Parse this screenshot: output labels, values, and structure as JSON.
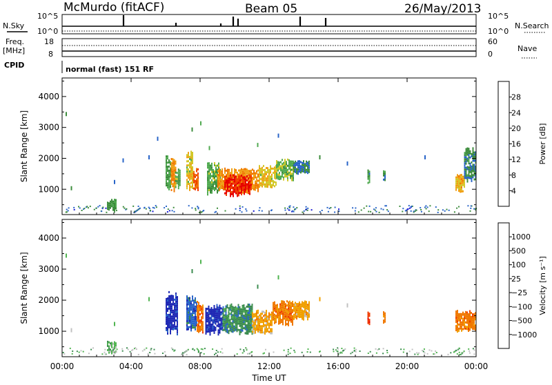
{
  "header": {
    "station": "McMurdo (fitACF)",
    "beam": "Beam 05",
    "date": "26/May/2013"
  },
  "strips": {
    "nsky_label": "N.Sky",
    "nsearch_label": "N.Search",
    "noise_ticks_left": [
      "10^5",
      "10^0"
    ],
    "noise_ticks_right": [
      "10^5",
      "10^0"
    ],
    "freq_label": "Freq.",
    "freq_unit": "[MHz]",
    "freq_ticks": [
      "18",
      "8"
    ],
    "nave_label": "Nave",
    "nave_ticks": [
      "60",
      "0"
    ],
    "cpid_label": "CPID",
    "cpid_text": "normal (fast) 151 RF"
  },
  "colors": {
    "power_scale": [
      "#1414d2",
      "#2864c8",
      "#3c8c3c",
      "#50aa50",
      "#d2c828",
      "#f0a014",
      "#f07800",
      "#f03c00",
      "#e60000"
    ],
    "velocity_scale": [
      "#1e28b4",
      "#2864c8",
      "#3c8c50",
      "#50b450",
      "#c0c0c0",
      "#f0a000",
      "#f07800",
      "#f03c00",
      "#e60000"
    ]
  },
  "chart_data": [
    {
      "type": "heatmap",
      "name": "power",
      "xlabel": "",
      "ylabel": "Slant Range [km]",
      "x_ticks": [
        "00:00",
        "04:00",
        "08:00",
        "12:00",
        "16:00",
        "20:00",
        "00:00"
      ],
      "xlim": [
        0,
        24
      ],
      "y_ticks": [
        1000,
        2000,
        3000,
        4000
      ],
      "ylim": [
        180,
        4600
      ],
      "colorbar": {
        "label": "Power [dB]",
        "ticks": [
          4,
          8,
          12,
          16,
          20,
          24,
          28
        ],
        "range": [
          0,
          32
        ]
      },
      "regions": [
        {
          "t0": 2.6,
          "t1": 3.1,
          "r0": 300,
          "r1": 700,
          "v": 10
        },
        {
          "t0": 6.0,
          "t1": 6.3,
          "r0": 950,
          "r1": 2100,
          "v": 11
        },
        {
          "t0": 6.3,
          "t1": 6.55,
          "r0": 900,
          "r1": 2200,
          "v": 22
        },
        {
          "t0": 6.55,
          "t1": 6.8,
          "r0": 1000,
          "r1": 1700,
          "v": 12
        },
        {
          "t0": 7.2,
          "t1": 7.6,
          "r0": 1000,
          "r1": 2300,
          "v": 17
        },
        {
          "t0": 7.6,
          "t1": 7.9,
          "r0": 950,
          "r1": 1700,
          "v": 25
        },
        {
          "t0": 8.4,
          "t1": 9.2,
          "r0": 800,
          "r1": 1900,
          "v": 12
        },
        {
          "t0": 9.0,
          "t1": 11.4,
          "r0": 900,
          "r1": 1700,
          "v": 21
        },
        {
          "t0": 9.4,
          "t1": 11.0,
          "r0": 800,
          "r1": 1500,
          "v": 29
        },
        {
          "t0": 11.4,
          "t1": 12.4,
          "r0": 1000,
          "r1": 1800,
          "v": 17
        },
        {
          "t0": 12.4,
          "t1": 13.4,
          "r0": 1300,
          "r1": 2000,
          "v": 13
        },
        {
          "t0": 13.4,
          "t1": 14.3,
          "r0": 1500,
          "r1": 1950,
          "v": 7
        },
        {
          "t0": 17.7,
          "t1": 17.85,
          "r0": 1200,
          "r1": 1650,
          "v": 9
        },
        {
          "t0": 18.6,
          "t1": 18.75,
          "r0": 1250,
          "r1": 1650,
          "v": 9
        },
        {
          "t0": 22.8,
          "t1": 23.3,
          "r0": 900,
          "r1": 1500,
          "v": 19
        },
        {
          "t0": 23.3,
          "t1": 24.0,
          "r0": 1200,
          "r1": 2400,
          "v": 8
        }
      ],
      "scatter": [
        {
          "t": 0.2,
          "r": 3500,
          "v": 8
        },
        {
          "t": 0.5,
          "r": 1100,
          "v": 10
        },
        {
          "t": 3.0,
          "r": 1300,
          "v": 6
        },
        {
          "t": 3.5,
          "r": 2000,
          "v": 6
        },
        {
          "t": 5.0,
          "r": 2100,
          "v": 7
        },
        {
          "t": 5.5,
          "r": 2700,
          "v": 6
        },
        {
          "t": 7.5,
          "r": 3000,
          "v": 10
        },
        {
          "t": 8.0,
          "r": 3200,
          "v": 12
        },
        {
          "t": 8.5,
          "r": 2400,
          "v": 11
        },
        {
          "t": 11.3,
          "r": 2500,
          "v": 12
        },
        {
          "t": 12.5,
          "r": 2800,
          "v": 6
        },
        {
          "t": 14.9,
          "r": 2100,
          "v": 8
        },
        {
          "t": 16.5,
          "r": 1900,
          "v": 6
        },
        {
          "t": 21.0,
          "r": 2100,
          "v": 7
        }
      ]
    },
    {
      "type": "heatmap",
      "name": "velocity",
      "xlabel": "Time UT",
      "ylabel": "Slant Range [km]",
      "x_ticks": [
        "00:00",
        "04:00",
        "08:00",
        "12:00",
        "16:00",
        "20:00",
        "00:00"
      ],
      "xlim": [
        0,
        24
      ],
      "y_ticks": [
        1000,
        2000,
        3000,
        4000
      ],
      "ylim": [
        180,
        4600
      ],
      "colorbar": {
        "label": "Velocity [m s⁻¹]",
        "ticks": [
          "1000",
          "500",
          "100",
          "25",
          "−25",
          "−100",
          "−500",
          "−1000"
        ]
      },
      "regions": [
        {
          "t0": 2.6,
          "t1": 3.1,
          "r0": 300,
          "r1": 700,
          "v": 3
        },
        {
          "t0": 6.0,
          "t1": 6.7,
          "r0": 900,
          "r1": 2300,
          "v": 0
        },
        {
          "t0": 7.2,
          "t1": 7.8,
          "r0": 1000,
          "r1": 2200,
          "v": 1
        },
        {
          "t0": 7.8,
          "t1": 8.2,
          "r0": 900,
          "r1": 2000,
          "v": 6
        },
        {
          "t0": 8.3,
          "t1": 9.3,
          "r0": 900,
          "r1": 1900,
          "v": 0
        },
        {
          "t0": 9.3,
          "t1": 11.0,
          "r0": 900,
          "r1": 1900,
          "v": 2
        },
        {
          "t0": 11.0,
          "t1": 12.2,
          "r0": 900,
          "r1": 1700,
          "v": 5
        },
        {
          "t0": 12.2,
          "t1": 13.4,
          "r0": 1200,
          "r1": 2000,
          "v": 6
        },
        {
          "t0": 13.4,
          "t1": 14.3,
          "r0": 1400,
          "r1": 2000,
          "v": 5
        },
        {
          "t0": 17.7,
          "t1": 17.85,
          "r0": 1200,
          "r1": 1650,
          "v": 7
        },
        {
          "t0": 18.6,
          "t1": 18.75,
          "r0": 1250,
          "r1": 1650,
          "v": 6
        },
        {
          "t0": 22.8,
          "t1": 24.0,
          "r0": 1000,
          "r1": 1700,
          "v": 6
        }
      ],
      "scatter": [
        {
          "t": 0.2,
          "r": 3500,
          "v": 3
        },
        {
          "t": 0.5,
          "r": 1100,
          "v": 4
        },
        {
          "t": 3.0,
          "r": 1300,
          "v": 3
        },
        {
          "t": 5.0,
          "r": 2100,
          "v": 3
        },
        {
          "t": 7.5,
          "r": 3000,
          "v": 2
        },
        {
          "t": 8.0,
          "r": 3300,
          "v": 3
        },
        {
          "t": 11.3,
          "r": 2500,
          "v": 2
        },
        {
          "t": 12.5,
          "r": 2800,
          "v": 3
        },
        {
          "t": 14.9,
          "r": 2100,
          "v": 5
        },
        {
          "t": 16.5,
          "r": 1900,
          "v": 4
        }
      ]
    }
  ]
}
